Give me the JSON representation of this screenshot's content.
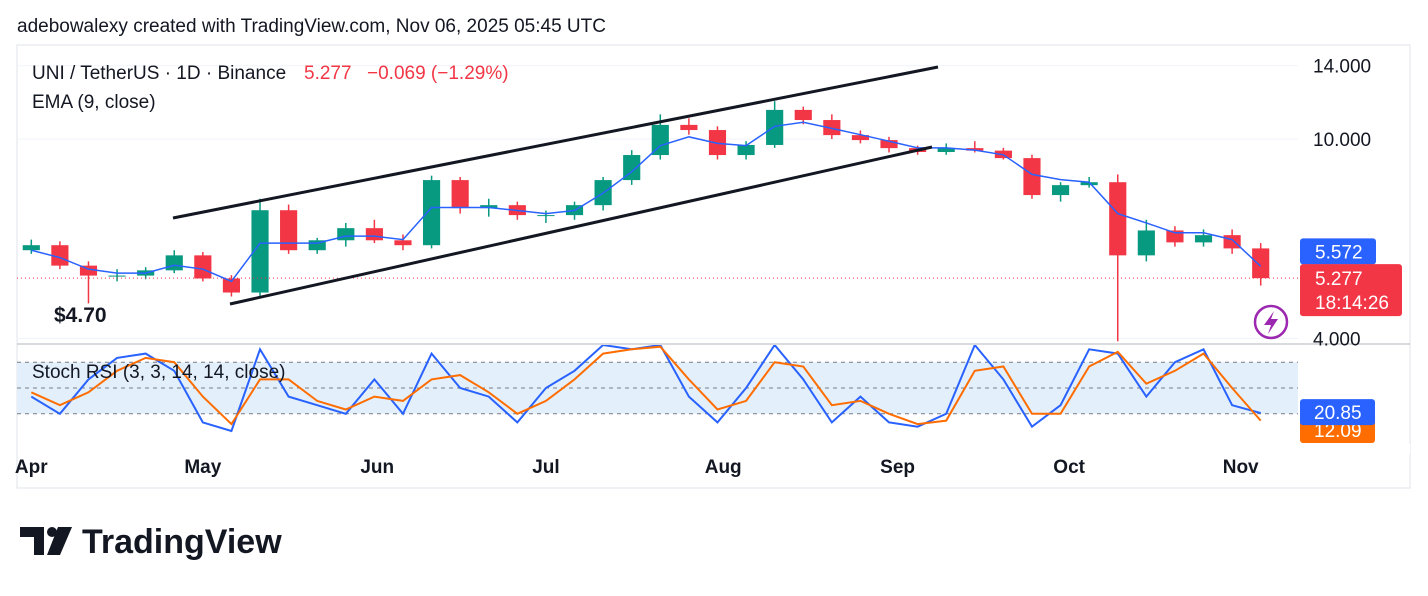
{
  "header": "adebowalexy created with TradingView.com, Nov 06, 2025 05:45 UTC",
  "logo": "TradingView",
  "chart_data": [
    {
      "type": "candlestick",
      "title": "UNI / TetherUS · 1D · Binance",
      "last_price": 5.277,
      "change": "−0.069 (−1.29%)",
      "countdown": "18:14:26",
      "annotation": "$4.70",
      "up_color": "#089981",
      "down_color": "#f23645",
      "log_scale": true,
      "ylim": [
        3.9,
        15.4
      ],
      "yticks": [
        {
          "value": 4,
          "label": "4.000"
        },
        {
          "value": 10,
          "label": "10.000"
        },
        {
          "value": 14,
          "label": "14.000"
        }
      ],
      "grid": true,
      "candles": {
        "open": [
          6.0,
          6.14,
          5.59,
          5.34,
          5.34,
          5.47,
          5.86,
          5.27,
          4.94,
          7.21,
          6.0,
          6.28,
          6.64,
          6.28,
          6.14,
          8.28,
          7.28,
          7.38,
          7.05,
          7.05,
          7.38,
          8.28,
          9.29,
          10.67,
          10.42,
          9.29,
          9.73,
          11.43,
          10.91,
          10.18,
          9.95,
          9.59,
          9.42,
          9.59,
          9.48,
          9.16,
          7.73,
          8.09,
          8.2,
          5.86,
          6.57,
          6.22,
          6.43,
          6.05
        ],
        "high": [
          6.3,
          6.25,
          5.7,
          5.5,
          5.55,
          6.0,
          5.95,
          5.35,
          7.6,
          7.4,
          6.35,
          6.8,
          6.9,
          6.45,
          8.45,
          8.4,
          7.6,
          7.5,
          7.2,
          7.5,
          8.4,
          9.5,
          11.2,
          11.0,
          10.6,
          9.9,
          11.9,
          11.6,
          11.2,
          10.4,
          10.1,
          9.7,
          9.8,
          9.9,
          9.6,
          9.3,
          8.2,
          8.4,
          8.5,
          6.9,
          6.7,
          6.6,
          6.6,
          6.2
        ],
        "low": [
          5.9,
          5.5,
          4.7,
          5.2,
          5.25,
          5.4,
          5.2,
          4.85,
          4.85,
          5.9,
          5.9,
          6.1,
          6.2,
          6.0,
          6.05,
          7.1,
          7.0,
          6.9,
          6.8,
          6.9,
          7.2,
          8.1,
          9.1,
          10.2,
          9.1,
          9.1,
          9.6,
          10.7,
          10.0,
          9.8,
          9.4,
          9.3,
          9.3,
          9.4,
          9.1,
          7.6,
          7.5,
          8.0,
          3.95,
          5.7,
          6.1,
          6.1,
          5.9,
          5.1
        ],
        "close": [
          6.14,
          5.59,
          5.34,
          5.34,
          5.47,
          5.86,
          5.27,
          4.94,
          7.21,
          6.0,
          6.28,
          6.64,
          6.28,
          6.14,
          8.28,
          7.28,
          7.38,
          7.05,
          7.05,
          7.38,
          8.28,
          9.29,
          10.67,
          10.42,
          9.29,
          9.73,
          11.43,
          10.91,
          10.18,
          9.95,
          9.59,
          9.42,
          9.59,
          9.48,
          9.16,
          7.73,
          8.09,
          8.2,
          5.86,
          6.57,
          6.22,
          6.43,
          6.05,
          5.277
        ]
      },
      "series": [
        {
          "name": "EMA (9, close)",
          "color": "#2962ff",
          "values": [
            6.0,
            5.8,
            5.5,
            5.4,
            5.4,
            5.6,
            5.5,
            5.2,
            6.2,
            6.2,
            6.2,
            6.4,
            6.4,
            6.3,
            7.3,
            7.3,
            7.3,
            7.2,
            7.1,
            7.2,
            7.8,
            8.6,
            9.7,
            10.1,
            9.8,
            9.7,
            10.6,
            10.8,
            10.5,
            10.2,
            9.9,
            9.6,
            9.6,
            9.5,
            9.3,
            8.5,
            8.3,
            8.2,
            7.1,
            6.8,
            6.5,
            6.5,
            6.3,
            5.572
          ]
        }
      ]
    },
    {
      "type": "line",
      "title": "Stoch RSI (3, 3, 14, 14, close)",
      "ylim": [
        0,
        100
      ],
      "levels": [
        80,
        50,
        20
      ],
      "band_color": "#e3f0fc",
      "xticks": [
        {
          "value": 0,
          "label": "Apr"
        },
        {
          "value": 6,
          "label": "May"
        },
        {
          "value": 12.1,
          "label": "Jun"
        },
        {
          "value": 18,
          "label": "Jul"
        },
        {
          "value": 24.2,
          "label": "Aug"
        },
        {
          "value": 30.3,
          "label": "Sep"
        },
        {
          "value": 36.3,
          "label": "Oct"
        },
        {
          "value": 42.3,
          "label": "Nov"
        }
      ],
      "series": [
        {
          "color": "#2962ff",
          "values": [
            40,
            20,
            60,
            85,
            90,
            70,
            10,
            0,
            95,
            40,
            30,
            20,
            60,
            20,
            90,
            50,
            40,
            10,
            50,
            70,
            100,
            95,
            100,
            40,
            10,
            50,
            100,
            60,
            10,
            40,
            10,
            5,
            20,
            100,
            60,
            5,
            30,
            95,
            90,
            40,
            80,
            95,
            30,
            20.85
          ]
        },
        {
          "color": "#ff6d00",
          "values": [
            45,
            30,
            45,
            70,
            85,
            80,
            40,
            8,
            60,
            60,
            35,
            25,
            40,
            35,
            60,
            65,
            45,
            20,
            35,
            60,
            90,
            95,
            98,
            60,
            25,
            35,
            80,
            75,
            30,
            35,
            20,
            8,
            12,
            70,
            75,
            20,
            20,
            75,
            92,
            55,
            70,
            90,
            50,
            12.09
          ]
        }
      ]
    }
  ]
}
